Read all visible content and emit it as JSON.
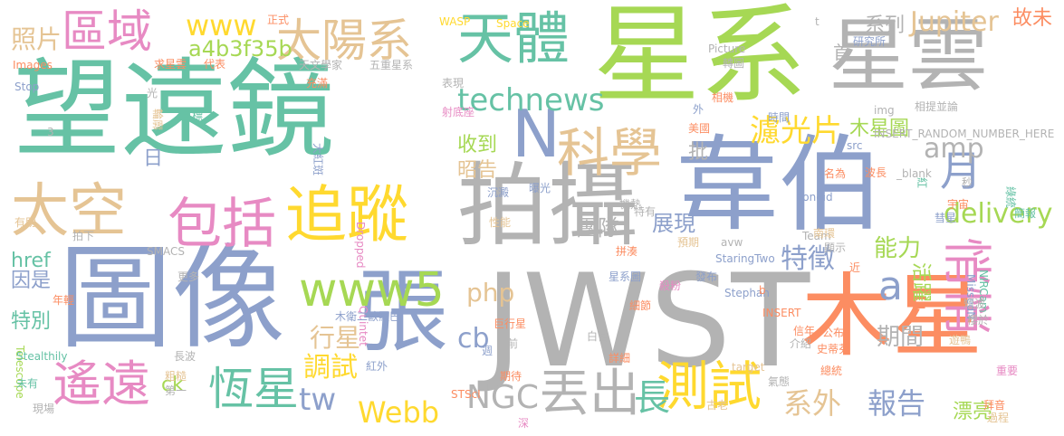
{
  "palette": [
    "#66c2a5",
    "#fc8d62",
    "#8da0cb",
    "#e78ac3",
    "#a6d854",
    "#ffd92f",
    "#e5c494",
    "#b3b3b3"
  ],
  "words": [
    {
      "text": "望遠鏡",
      "c": "#66c2a5"
    },
    {
      "text": "JWST",
      "c": "#b3b3b3"
    },
    {
      "text": "星系",
      "c": "#a6d854"
    },
    {
      "text": "圖像",
      "c": "#8da0cb"
    },
    {
      "text": "韋伯",
      "c": "#8da0cb"
    },
    {
      "text": "拍攝",
      "c": "#b3b3b3"
    },
    {
      "text": "木星",
      "c": "#fc8d62"
    },
    {
      "text": "星雲",
      "c": "#b3b3b3"
    },
    {
      "text": "張",
      "c": "#8da0cb"
    },
    {
      "text": "天體",
      "c": "#66c2a5"
    },
    {
      "text": "追蹤",
      "c": "#ffd92f"
    },
    {
      "text": "太陽系",
      "c": "#e5c494"
    },
    {
      "text": "區域",
      "c": "#e78ac3"
    },
    {
      "text": "包括",
      "c": "#e78ac3"
    },
    {
      "text": "太空",
      "c": "#e5c494"
    },
    {
      "text": "N",
      "c": "#8da0cb"
    },
    {
      "text": "科學",
      "c": "#e5c494"
    },
    {
      "text": "www5",
      "c": "#a6d854"
    },
    {
      "text": "遙遠",
      "c": "#e78ac3"
    },
    {
      "text": "恆星",
      "c": "#66c2a5"
    },
    {
      "text": "丟出",
      "c": "#b3b3b3"
    },
    {
      "text": "測試",
      "c": "#ffd92f"
    },
    {
      "text": "悄悄",
      "c": "#e78ac3"
    },
    {
      "text": "technews",
      "c": "#66c2a5"
    },
    {
      "text": "Webb",
      "c": "#ffd92f"
    },
    {
      "text": "NGC",
      "c": "#b3b3b3"
    },
    {
      "text": "delivery",
      "c": "#a6d854"
    },
    {
      "text": "月",
      "c": "#8da0cb"
    },
    {
      "text": "amp",
      "c": "#b3b3b3"
    },
    {
      "text": "www",
      "c": "#ffd92f"
    },
    {
      "text": "a4b3f35b",
      "c": "#a6d854"
    },
    {
      "text": "Jupiter",
      "c": "#e5c494"
    },
    {
      "text": "照片",
      "c": "#e5c494"
    },
    {
      "text": "濾光片",
      "c": "#ffd92f"
    },
    {
      "text": "特徵",
      "c": "#8da0cb"
    },
    {
      "text": "報告",
      "c": "#8da0cb"
    },
    {
      "text": "長",
      "c": "#66c2a5"
    },
    {
      "text": "系外",
      "c": "#e5c494"
    },
    {
      "text": "tw",
      "c": "#8da0cb"
    },
    {
      "text": "cb",
      "c": "#8da0cb"
    },
    {
      "text": "php",
      "c": "#e5c494"
    },
    {
      "text": "a",
      "c": "#8da0cb"
    },
    {
      "text": "F",
      "c": "#fc8d62"
    },
    {
      "text": "調試",
      "c": "#ffd92f"
    },
    {
      "text": "行星",
      "c": "#e5c494"
    },
    {
      "text": "期間",
      "c": "#b3b3b3"
    },
    {
      "text": "活躍",
      "c": "#a6d854"
    },
    {
      "text": "能力",
      "c": "#a6d854"
    },
    {
      "text": "展現",
      "c": "#8da0cb"
    },
    {
      "text": "團隊",
      "c": "#b3b3b3"
    },
    {
      "text": "收到",
      "c": "#a6d854"
    },
    {
      "text": "昭告",
      "c": "#e5c494"
    },
    {
      "text": "批",
      "c": "#b3b3b3"
    },
    {
      "text": "木星圖",
      "c": "#a6d854"
    },
    {
      "text": "系列",
      "c": "#b3b3b3"
    },
    {
      "text": "故未",
      "c": "#fc8d62"
    },
    {
      "text": "漂亮",
      "c": "#a6d854"
    },
    {
      "text": "href",
      "c": "#66c2a5"
    },
    {
      "text": "因是",
      "c": "#8da0cb"
    },
    {
      "text": "特別",
      "c": "#66c2a5"
    },
    {
      "text": "ck",
      "c": "#a6d854"
    },
    {
      "text": "日",
      "c": "#8da0cb"
    },
    {
      "text": "首",
      "c": "#b3b3b3"
    },
    {
      "text": "Telescope",
      "c": "#a6d854"
    },
    {
      "text": "Images",
      "c": "#fc8d62"
    },
    {
      "text": "Stop",
      "c": "#8da0cb"
    },
    {
      "text": "SMACS",
      "c": "#b3b3b3"
    },
    {
      "text": "Stealthily",
      "c": "#66c2a5"
    },
    {
      "text": "Dropped",
      "c": "#e78ac3"
    },
    {
      "text": "Quintet",
      "c": "#e78ac3"
    },
    {
      "text": "STScI",
      "c": "#fc8d62"
    },
    {
      "text": "StaringTwo",
      "c": "#8da0cb"
    },
    {
      "text": "Stephan",
      "c": "#8da0cb"
    },
    {
      "text": "INSERT",
      "c": "#fc8d62"
    },
    {
      "text": "target",
      "c": "#e5c494"
    },
    {
      "text": "NIRCam",
      "c": "#66c2a5"
    },
    {
      "text": "MissedN",
      "c": "#8da0cb"
    },
    {
      "text": "Team",
      "c": "#b3b3b3"
    },
    {
      "text": "avw",
      "c": "#b3b3b3"
    },
    {
      "text": "zoneid",
      "c": "#8da0cb"
    },
    {
      "text": "_blank",
      "c": "#b3b3b3"
    },
    {
      "text": "INSERT_RANDOM_NUMBER_HERE",
      "c": "#b3b3b3"
    },
    {
      "text": "img",
      "c": "#b3b3b3"
    },
    {
      "text": "src",
      "c": "#8da0cb"
    },
    {
      "text": "Picture",
      "c": "#b3b3b3"
    },
    {
      "text": "Space",
      "c": "#ffd92f"
    },
    {
      "text": "WASP",
      "c": "#ffd92f"
    },
    {
      "text": "正式",
      "c": "#fc8d62"
    },
    {
      "text": "代表",
      "c": "#fc8d62"
    },
    {
      "text": "天文學家",
      "c": "#b3b3b3"
    },
    {
      "text": "五重星系",
      "c": "#b3b3b3"
    },
    {
      "text": "表現",
      "c": "#b3b3b3"
    },
    {
      "text": "充滿",
      "c": "#fc8d62"
    },
    {
      "text": "射底座",
      "c": "#e78ac3"
    },
    {
      "text": "光",
      "c": "#b3b3b3"
    },
    {
      "text": "大紅斑",
      "c": "#8da0cb"
    },
    {
      "text": "目標",
      "c": "#66c2a5"
    },
    {
      "text": "研究所",
      "c": "#8da0cb"
    },
    {
      "text": "轉圖",
      "c": "#b3b3b3"
    },
    {
      "text": "相機",
      "c": "#fc8d62"
    },
    {
      "text": "時間",
      "c": "#8da0cb"
    },
    {
      "text": "相提並論",
      "c": "#b3b3b3"
    },
    {
      "text": "美國",
      "c": "#fc8d62"
    },
    {
      "text": "曝光",
      "c": "#8da0cb"
    },
    {
      "text": "機熱",
      "c": "#b3b3b3"
    },
    {
      "text": "特有",
      "c": "#b3b3b3"
    },
    {
      "text": "沉澱",
      "c": "#8da0cb"
    },
    {
      "text": "性能",
      "c": "#e5c494"
    },
    {
      "text": "預期",
      "c": "#e5c494"
    },
    {
      "text": "拼湊",
      "c": "#fc8d62"
    },
    {
      "text": "發布",
      "c": "#8da0cb"
    },
    {
      "text": "殺粉",
      "c": "#e78ac3"
    },
    {
      "text": "星系圖",
      "c": "#8da0cb"
    },
    {
      "text": "細節",
      "c": "#fc8d62"
    },
    {
      "text": "木衛二歐羅巴",
      "c": "#8da0cb"
    },
    {
      "text": "巨行星",
      "c": "#fc8d62"
    },
    {
      "text": "白宮",
      "c": "#b3b3b3"
    },
    {
      "text": "詳細",
      "c": "#fc8d62"
    },
    {
      "text": "期待",
      "c": "#fc8d62"
    },
    {
      "text": "深",
      "c": "#e78ac3"
    },
    {
      "text": "信年",
      "c": "#fc8d62"
    },
    {
      "text": "介紹",
      "c": "#b3b3b3"
    },
    {
      "text": "公布",
      "c": "#fc8d62"
    },
    {
      "text": "史蒂芬",
      "c": "#fc8d62"
    },
    {
      "text": "遊鴨",
      "c": "#e5c494"
    },
    {
      "text": "長波",
      "c": "#b3b3b3"
    },
    {
      "text": "紅外",
      "c": "#8da0cb"
    },
    {
      "text": "短波",
      "c": "#b3b3b3"
    },
    {
      "text": "櫻於",
      "c": "#b3b3b3"
    },
    {
      "text": "拜音",
      "c": "#fc8d62"
    },
    {
      "text": "過程",
      "c": "#e5c494"
    },
    {
      "text": "名為",
      "c": "#fc8d62"
    },
    {
      "text": "綠統",
      "c": "#66c2a5"
    },
    {
      "text": "彗星",
      "c": "#8da0cb"
    },
    {
      "text": "宇宙",
      "c": "#fc8d62"
    },
    {
      "text": "簡報",
      "c": "#66c2a5"
    },
    {
      "text": "南環",
      "c": "#e5c494"
    },
    {
      "text": "顯示",
      "c": "#b3b3b3"
    },
    {
      "text": "求星雲",
      "c": "#fc8d62"
    },
    {
      "text": "輪廓",
      "c": "#e5c494"
    },
    {
      "text": "有助",
      "c": "#e5c494"
    },
    {
      "text": "拍下",
      "c": "#b3b3b3"
    },
    {
      "text": "年輕",
      "c": "#fc8d62"
    },
    {
      "text": "更多",
      "c": "#b3b3b3"
    },
    {
      "text": "粗糙",
      "c": "#e5c494"
    },
    {
      "text": "第一",
      "c": "#b3b3b3"
    },
    {
      "text": "現場",
      "c": "#b3b3b3"
    },
    {
      "text": "未有",
      "c": "#66c2a5"
    },
    {
      "text": "總統",
      "c": "#fc8d62"
    },
    {
      "text": "古老",
      "c": "#e5c494"
    },
    {
      "text": "氣態",
      "c": "#b3b3b3"
    },
    {
      "text": "b",
      "c": "#fc8d62"
    },
    {
      "text": "t",
      "c": "#b3b3b3"
    },
    {
      "text": "外",
      "c": "#8da0cb"
    },
    {
      "text": "近",
      "c": "#fc8d62"
    },
    {
      "text": "波長",
      "c": "#fc8d62"
    },
    {
      "text": "紅",
      "c": "#66c2a5"
    },
    {
      "text": "秒",
      "c": "#b3b3b3"
    },
    {
      "text": "前",
      "c": "#b3b3b3"
    },
    {
      "text": "週",
      "c": "#8da0cb"
    },
    {
      "text": "3",
      "c": "#b3b3b3"
    },
    {
      "text": "重要",
      "c": "#e78ac3"
    }
  ]
}
